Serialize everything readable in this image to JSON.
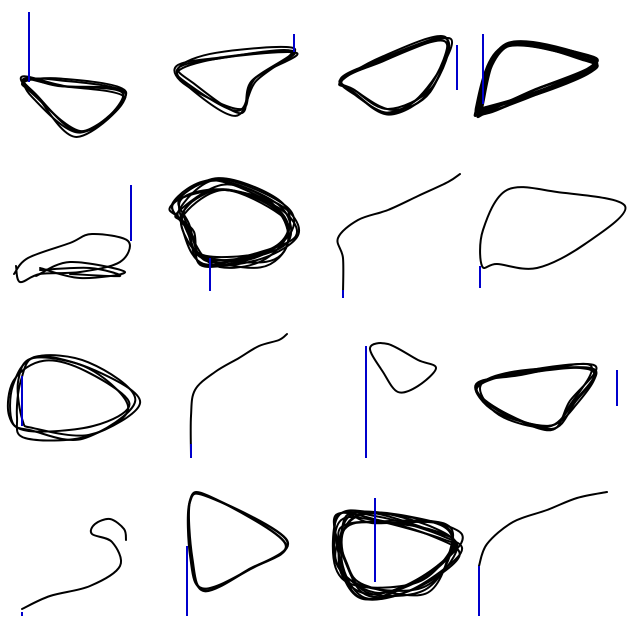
{
  "style": {
    "background": "#ffffff",
    "stroke_color": "#000000",
    "marker_color": "#0000cc"
  },
  "grid": {
    "rows": 4,
    "cols": 4
  },
  "panels": [
    {
      "id": "r1c1",
      "shape": "triangle-down",
      "loops": 5,
      "marker": "left"
    },
    {
      "id": "r1c2",
      "shape": "triangle-down",
      "loops": 4,
      "marker": "right"
    },
    {
      "id": "r1c3",
      "shape": "triangle-up",
      "loops": 5,
      "marker": "right"
    },
    {
      "id": "r1c4",
      "shape": "triangle-up",
      "loops": 8,
      "marker": "left"
    },
    {
      "id": "r2c1",
      "shape": "scribble",
      "loops": 3,
      "marker": "right"
    },
    {
      "id": "r2c2",
      "shape": "blob",
      "loops": 10,
      "marker": "bottom"
    },
    {
      "id": "r2c3",
      "shape": "curve-up",
      "loops": 1,
      "marker": "bottom-left"
    },
    {
      "id": "r2c4",
      "shape": "triangle-single",
      "loops": 1,
      "marker": "bottom-left"
    },
    {
      "id": "r3c1",
      "shape": "blob",
      "loops": 4,
      "marker": "left"
    },
    {
      "id": "r3c2",
      "shape": "curve-up",
      "loops": 1,
      "marker": "bottom-left"
    },
    {
      "id": "r3c3",
      "shape": "small-loop",
      "loops": 1,
      "marker": "top-left"
    },
    {
      "id": "r3c4",
      "shape": "triangle-up",
      "loops": 5,
      "marker": "right"
    },
    {
      "id": "r4c1",
      "shape": "squiggle",
      "loops": 1,
      "marker": "bottom-left"
    },
    {
      "id": "r4c2",
      "shape": "triangle-right",
      "loops": 2,
      "marker": "left"
    },
    {
      "id": "r4c3",
      "shape": "blob",
      "loops": 10,
      "marker": "top"
    },
    {
      "id": "r4c4",
      "shape": "curve-up",
      "loops": 1,
      "marker": "bottom-left"
    }
  ]
}
